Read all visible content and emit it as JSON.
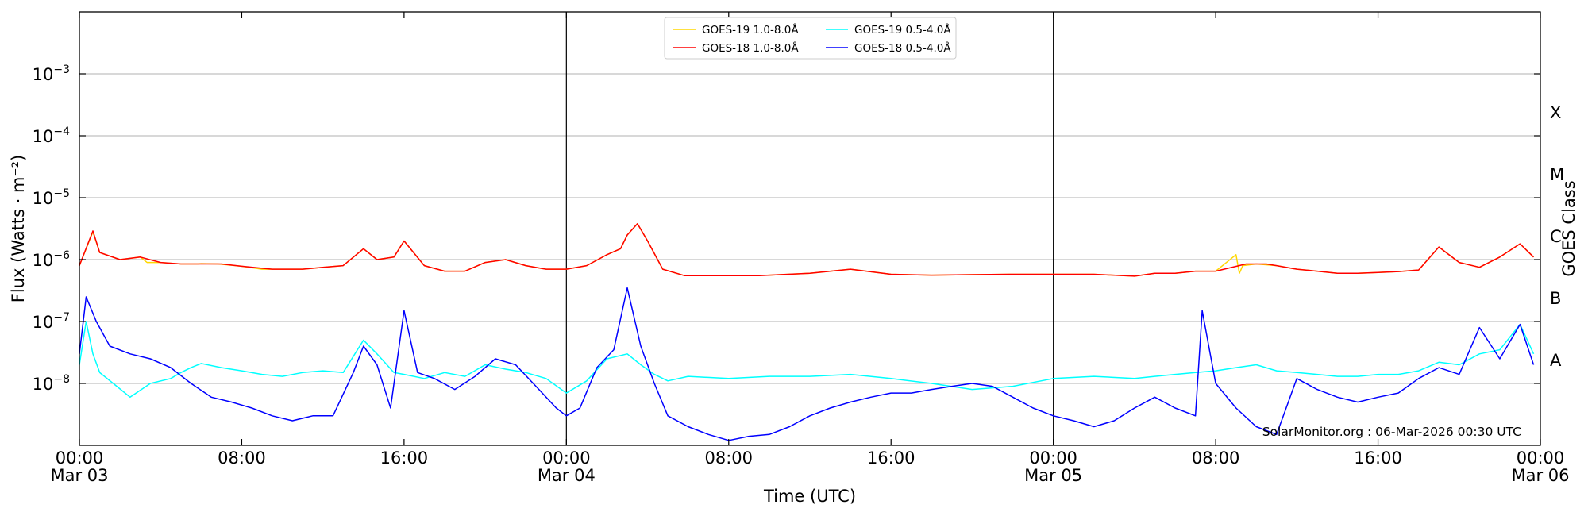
{
  "chart_data": {
    "type": "line",
    "title": "",
    "xlabel": "Time (UTC)",
    "ylabel": "Flux (Watts · m⁻²)",
    "right_ylabel": "GOES Class",
    "y_scale": "log",
    "ylim": [
      1e-09,
      0.01
    ],
    "xlim": [
      "2026-03-03T00:00",
      "2026-03-06T00:00"
    ],
    "grid": "horizontal at decades",
    "legend_position": "top-center",
    "x_ticks": [
      {
        "time": "2026-03-03T00:00",
        "label": "00:00",
        "date": "Mar 03"
      },
      {
        "time": "2026-03-03T08:00",
        "label": "08:00",
        "date": ""
      },
      {
        "time": "2026-03-03T16:00",
        "label": "16:00",
        "date": ""
      },
      {
        "time": "2026-03-04T00:00",
        "label": "00:00",
        "date": "Mar 04"
      },
      {
        "time": "2026-03-04T08:00",
        "label": "08:00",
        "date": ""
      },
      {
        "time": "2026-03-04T16:00",
        "label": "16:00",
        "date": ""
      },
      {
        "time": "2026-03-05T00:00",
        "label": "00:00",
        "date": "Mar 05"
      },
      {
        "time": "2026-03-05T08:00",
        "label": "08:00",
        "date": ""
      },
      {
        "time": "2026-03-05T16:00",
        "label": "16:00",
        "date": ""
      },
      {
        "time": "2026-03-06T00:00",
        "label": "00:00",
        "date": "Mar 06"
      }
    ],
    "day_markers": [
      "2026-03-04T00:00",
      "2026-03-05T00:00"
    ],
    "y_ticks": [
      {
        "value": 1e-08,
        "base": "10",
        "exp": "−8"
      },
      {
        "value": 1e-07,
        "base": "10",
        "exp": "−7"
      },
      {
        "value": 1e-06,
        "base": "10",
        "exp": "−6"
      },
      {
        "value": 1e-05,
        "base": "10",
        "exp": "−5"
      },
      {
        "value": 0.0001,
        "base": "10",
        "exp": "−4"
      },
      {
        "value": 0.001,
        "base": "10",
        "exp": "−3"
      }
    ],
    "goes_classes": [
      {
        "label": "A",
        "value": 1e-08
      },
      {
        "label": "B",
        "value": 1e-07
      },
      {
        "label": "C",
        "value": 1e-06
      },
      {
        "label": "M",
        "value": 1e-05
      },
      {
        "label": "X",
        "value": 0.0001
      }
    ],
    "annotation": "SolarMonitor.org : 06-Mar-2026 00:30 UTC",
    "series": [
      {
        "name": "GOES-19 1.0-8.0Å",
        "color": "#ffd700",
        "x": [
          "2026-03-03T00:00",
          "2026-03-03T00:40",
          "2026-03-03T01:00",
          "2026-03-03T02:00",
          "2026-03-03T03:00",
          "2026-03-03T03:20",
          "2026-03-03T04:00",
          "2026-03-03T05:00",
          "2026-03-03T05:50",
          "2026-03-03T06:00",
          "2026-03-03T06:50",
          "2026-03-03T08:00",
          "2026-03-03T09:00",
          "2026-03-03T10:00",
          "2026-03-03T11:00",
          "2026-03-03T12:00",
          "2026-03-03T13:00",
          "2026-03-03T14:00",
          "2026-03-03T14:40",
          "2026-03-03T15:30",
          "2026-03-03T16:00",
          "2026-03-03T17:00",
          "2026-03-03T18:00",
          "2026-03-03T19:00",
          "2026-03-03T20:00",
          "2026-03-03T21:00",
          "2026-03-03T22:00",
          "2026-03-03T23:00",
          "2026-03-04T00:00",
          "2026-03-04T01:00",
          "2026-03-04T02:00",
          "2026-03-04T02:40",
          "2026-03-04T03:00",
          "2026-03-04T03:30",
          "2026-03-04T04:00",
          "2026-03-04T04:45",
          "2026-03-04T05:50",
          "2026-03-04T07:00",
          "2026-03-04T08:00",
          "2026-03-04T09:00",
          "2026-03-04T10:00",
          "2026-03-04T12:00",
          "2026-03-04T14:00",
          "2026-03-04T16:00",
          "2026-03-04T18:00",
          "2026-03-04T20:00",
          "2026-03-04T22:00",
          "2026-03-05T00:00",
          "2026-03-05T02:00",
          "2026-03-05T04:00",
          "2026-03-05T05:00",
          "2026-03-05T06:00",
          "2026-03-05T07:00",
          "2026-03-05T08:00",
          "2026-03-05T09:00",
          "2026-03-05T09:10",
          "2026-03-05T09:20",
          "2026-03-05T10:00",
          "2026-03-05T11:00",
          "2026-03-05T12:00",
          "2026-03-05T13:00",
          "2026-03-05T14:00",
          "2026-03-05T15:00",
          "2026-03-05T16:00",
          "2026-03-05T17:00",
          "2026-03-05T18:00",
          "2026-03-05T19:00",
          "2026-03-05T20:00",
          "2026-03-05T21:00",
          "2026-03-05T22:00",
          "2026-03-05T23:00",
          "2026-03-05T23:40"
        ],
        "y": [
          8e-07,
          2.8e-06,
          1.3e-06,
          1e-06,
          1.1e-06,
          9e-07,
          9e-07,
          8.5e-07,
          8.5e-07,
          8.6e-07,
          8.5e-07,
          7.8e-07,
          7e-07,
          7e-07,
          7e-07,
          7.5e-07,
          8e-07,
          1.5e-06,
          1e-06,
          1.1e-06,
          2e-06,
          8e-07,
          6.5e-07,
          6.5e-07,
          9e-07,
          1e-06,
          8e-07,
          7e-07,
          7e-07,
          8e-07,
          1.2e-06,
          1.5e-06,
          2.5e-06,
          3.8e-06,
          2e-06,
          7e-07,
          5.5e-07,
          5.5e-07,
          5.5e-07,
          5.5e-07,
          5.6e-07,
          6e-07,
          7e-07,
          5.8e-07,
          5.6e-07,
          5.7e-07,
          5.8e-07,
          5.8e-07,
          5.8e-07,
          5.4e-07,
          6e-07,
          6e-07,
          6.5e-07,
          6.5e-07,
          1.2e-06,
          6e-07,
          8e-07,
          8.5e-07,
          8e-07,
          7e-07,
          6.5e-07,
          6e-07,
          6e-07,
          6.2e-07,
          6.4e-07,
          6.8e-07,
          1.6e-06,
          9e-07,
          7.5e-07,
          1.1e-06,
          1.8e-06,
          1.1e-06
        ]
      },
      {
        "name": "GOES-18 1.0-8.0Å",
        "color": "#ff0000",
        "x": [
          "2026-03-03T00:00",
          "2026-03-03T00:40",
          "2026-03-03T01:00",
          "2026-03-03T02:00",
          "2026-03-03T03:00",
          "2026-03-03T04:00",
          "2026-03-03T05:00",
          "2026-03-03T06:00",
          "2026-03-03T07:00",
          "2026-03-03T08:00",
          "2026-03-03T09:30",
          "2026-03-03T10:00",
          "2026-03-03T11:00",
          "2026-03-03T12:00",
          "2026-03-03T13:00",
          "2026-03-03T14:00",
          "2026-03-03T14:40",
          "2026-03-03T15:30",
          "2026-03-03T16:00",
          "2026-03-03T17:00",
          "2026-03-03T18:00",
          "2026-03-03T19:00",
          "2026-03-03T20:00",
          "2026-03-03T21:00",
          "2026-03-03T22:00",
          "2026-03-03T23:00",
          "2026-03-04T00:00",
          "2026-03-04T01:00",
          "2026-03-04T02:00",
          "2026-03-04T02:40",
          "2026-03-04T03:00",
          "2026-03-04T03:30",
          "2026-03-04T04:00",
          "2026-03-04T04:45",
          "2026-03-04T05:50",
          "2026-03-04T07:00",
          "2026-03-04T08:00",
          "2026-03-04T09:30",
          "2026-03-04T10:00",
          "2026-03-04T12:00",
          "2026-03-04T14:00",
          "2026-03-04T16:00",
          "2026-03-04T18:00",
          "2026-03-04T20:00",
          "2026-03-04T22:00",
          "2026-03-05T00:00",
          "2026-03-05T02:00",
          "2026-03-05T04:00",
          "2026-03-05T05:00",
          "2026-03-05T06:00",
          "2026-03-05T07:00",
          "2026-03-05T08:00",
          "2026-03-05T09:30",
          "2026-03-05T10:30",
          "2026-03-05T11:00",
          "2026-03-05T12:00",
          "2026-03-05T13:00",
          "2026-03-05T14:00",
          "2026-03-05T15:00",
          "2026-03-05T16:00",
          "2026-03-05T17:00",
          "2026-03-05T18:00",
          "2026-03-05T19:00",
          "2026-03-05T20:00",
          "2026-03-05T21:00",
          "2026-03-05T22:00",
          "2026-03-05T23:00",
          "2026-03-05T23:40"
        ],
        "y": [
          8e-07,
          2.9e-06,
          1.3e-06,
          1e-06,
          1.1e-06,
          9e-07,
          8.5e-07,
          8.5e-07,
          8.5e-07,
          7.8e-07,
          7e-07,
          7e-07,
          7e-07,
          7.5e-07,
          8e-07,
          1.5e-06,
          1e-06,
          1.1e-06,
          2e-06,
          8e-07,
          6.5e-07,
          6.5e-07,
          9e-07,
          1e-06,
          8e-07,
          7e-07,
          7e-07,
          8e-07,
          1.2e-06,
          1.5e-06,
          2.5e-06,
          3.8e-06,
          2e-06,
          7e-07,
          5.5e-07,
          5.5e-07,
          5.5e-07,
          5.5e-07,
          5.6e-07,
          6e-07,
          7e-07,
          5.8e-07,
          5.6e-07,
          5.7e-07,
          5.8e-07,
          5.8e-07,
          5.8e-07,
          5.4e-07,
          6e-07,
          6e-07,
          6.5e-07,
          6.5e-07,
          8.5e-07,
          8.5e-07,
          8e-07,
          7e-07,
          6.5e-07,
          6e-07,
          6e-07,
          6.2e-07,
          6.4e-07,
          6.8e-07,
          1.6e-06,
          9e-07,
          7.5e-07,
          1.1e-06,
          1.8e-06,
          1.1e-06
        ]
      },
      {
        "name": "GOES-19 0.5-4.0Å",
        "color": "#00ffff",
        "x": [
          "2026-03-03T00:00",
          "2026-03-03T00:20",
          "2026-03-03T00:40",
          "2026-03-03T01:00",
          "2026-03-03T01:40",
          "2026-03-03T02:30",
          "2026-03-03T03:30",
          "2026-03-03T04:30",
          "2026-03-03T05:00",
          "2026-03-03T05:30",
          "2026-03-03T06:00",
          "2026-03-03T07:00",
          "2026-03-03T08:00",
          "2026-03-03T09:00",
          "2026-03-03T10:00",
          "2026-03-03T11:00",
          "2026-03-03T12:00",
          "2026-03-03T13:00",
          "2026-03-03T14:00",
          "2026-03-03T14:40",
          "2026-03-03T15:30",
          "2026-03-03T16:00",
          "2026-03-03T17:00",
          "2026-03-03T18:00",
          "2026-03-03T19:00",
          "2026-03-03T20:00",
          "2026-03-03T21:00",
          "2026-03-03T22:00",
          "2026-03-03T23:00",
          "2026-03-04T00:00",
          "2026-03-04T01:00",
          "2026-03-04T02:00",
          "2026-03-04T03:00",
          "2026-03-04T03:40",
          "2026-03-04T04:20",
          "2026-03-04T05:00",
          "2026-03-04T06:00",
          "2026-03-04T08:00",
          "2026-03-04T10:00",
          "2026-03-04T12:00",
          "2026-03-04T14:00",
          "2026-03-04T16:00",
          "2026-03-04T18:00",
          "2026-03-04T20:00",
          "2026-03-04T22:00",
          "2026-03-05T00:00",
          "2026-03-05T02:00",
          "2026-03-05T04:00",
          "2026-03-05T05:00",
          "2026-03-05T06:00",
          "2026-03-05T07:00",
          "2026-03-05T08:00",
          "2026-03-05T09:00",
          "2026-03-05T10:00",
          "2026-03-05T11:00",
          "2026-03-05T12:00",
          "2026-03-05T13:00",
          "2026-03-05T14:00",
          "2026-03-05T15:00",
          "2026-03-05T16:00",
          "2026-03-05T17:00",
          "2026-03-05T18:00",
          "2026-03-05T19:00",
          "2026-03-05T20:00",
          "2026-03-05T21:00",
          "2026-03-05T22:00",
          "2026-03-05T23:00",
          "2026-03-05T23:40"
        ],
        "y": [
          2e-08,
          1e-07,
          3e-08,
          1.5e-08,
          1e-08,
          6e-09,
          1e-08,
          1.2e-08,
          1.5e-08,
          1.8e-08,
          2.1e-08,
          1.8e-08,
          1.6e-08,
          1.4e-08,
          1.3e-08,
          1.5e-08,
          1.6e-08,
          1.5e-08,
          5e-08,
          3e-08,
          1.5e-08,
          1.4e-08,
          1.2e-08,
          1.5e-08,
          1.3e-08,
          2e-08,
          1.7e-08,
          1.5e-08,
          1.2e-08,
          7e-09,
          1.1e-08,
          2.5e-08,
          3e-08,
          2e-08,
          1.4e-08,
          1.1e-08,
          1.3e-08,
          1.2e-08,
          1.3e-08,
          1.3e-08,
          1.4e-08,
          1.2e-08,
          1e-08,
          8e-09,
          9e-09,
          1.2e-08,
          1.3e-08,
          1.2e-08,
          1.3e-08,
          1.4e-08,
          1.5e-08,
          1.6e-08,
          1.8e-08,
          2e-08,
          1.6e-08,
          1.5e-08,
          1.4e-08,
          1.3e-08,
          1.3e-08,
          1.4e-08,
          1.4e-08,
          1.6e-08,
          2.2e-08,
          2e-08,
          3e-08,
          3.5e-08,
          9e-08,
          3e-08
        ]
      },
      {
        "name": "GOES-18 0.5-4.0Å",
        "color": "#0000ff",
        "x": [
          "2026-03-03T00:00",
          "2026-03-03T00:20",
          "2026-03-03T00:50",
          "2026-03-03T01:30",
          "2026-03-03T02:30",
          "2026-03-03T03:30",
          "2026-03-03T04:30",
          "2026-03-03T05:30",
          "2026-03-03T06:30",
          "2026-03-03T07:30",
          "2026-03-03T08:30",
          "2026-03-03T09:30",
          "2026-03-03T10:30",
          "2026-03-03T11:30",
          "2026-03-03T12:30",
          "2026-03-03T13:30",
          "2026-03-03T14:00",
          "2026-03-03T14:40",
          "2026-03-03T15:20",
          "2026-03-03T16:00",
          "2026-03-03T16:40",
          "2026-03-03T17:30",
          "2026-03-03T18:30",
          "2026-03-03T19:30",
          "2026-03-03T20:30",
          "2026-03-03T21:30",
          "2026-03-03T22:30",
          "2026-03-03T23:30",
          "2026-03-04T00:00",
          "2026-03-04T00:40",
          "2026-03-04T01:30",
          "2026-03-04T02:20",
          "2026-03-04T03:00",
          "2026-03-04T03:40",
          "2026-03-04T04:20",
          "2026-03-04T05:00",
          "2026-03-04T06:00",
          "2026-03-04T07:00",
          "2026-03-04T08:00",
          "2026-03-04T09:00",
          "2026-03-04T10:00",
          "2026-03-04T11:00",
          "2026-03-04T12:00",
          "2026-03-04T13:00",
          "2026-03-04T14:00",
          "2026-03-04T15:00",
          "2026-03-04T16:00",
          "2026-03-04T17:00",
          "2026-03-04T18:00",
          "2026-03-04T19:00",
          "2026-03-04T20:00",
          "2026-03-04T21:00",
          "2026-03-04T22:00",
          "2026-03-04T23:00",
          "2026-03-05T00:00",
          "2026-03-05T01:00",
          "2026-03-05T02:00",
          "2026-03-05T03:00",
          "2026-03-05T04:00",
          "2026-03-05T05:00",
          "2026-03-05T06:00",
          "2026-03-05T07:00",
          "2026-03-05T07:20",
          "2026-03-05T08:00",
          "2026-03-05T09:00",
          "2026-03-05T10:00",
          "2026-03-05T11:00",
          "2026-03-05T12:00",
          "2026-03-05T13:00",
          "2026-03-05T14:00",
          "2026-03-05T15:00",
          "2026-03-05T16:00",
          "2026-03-05T17:00",
          "2026-03-05T18:00",
          "2026-03-05T19:00",
          "2026-03-05T20:00",
          "2026-03-05T21:00",
          "2026-03-05T22:00",
          "2026-03-05T23:00",
          "2026-03-05T23:40"
        ],
        "y": [
          3e-08,
          2.5e-07,
          1e-07,
          4e-08,
          3e-08,
          2.5e-08,
          1.8e-08,
          1e-08,
          6e-09,
          5e-09,
          4e-09,
          3e-09,
          2.5e-09,
          3e-09,
          3e-09,
          1.5e-08,
          4e-08,
          2e-08,
          4e-09,
          1.5e-07,
          1.5e-08,
          1.2e-08,
          8e-09,
          1.3e-08,
          2.5e-08,
          2e-08,
          9e-09,
          4e-09,
          3e-09,
          4e-09,
          1.8e-08,
          3.5e-08,
          3.5e-07,
          4e-08,
          1e-08,
          3e-09,
          2e-09,
          1.5e-09,
          1.2e-09,
          1.4e-09,
          1.5e-09,
          2e-09,
          3e-09,
          4e-09,
          5e-09,
          6e-09,
          7e-09,
          7e-09,
          8e-09,
          9e-09,
          1e-08,
          9e-09,
          6e-09,
          4e-09,
          3e-09,
          2.5e-09,
          2e-09,
          2.5e-09,
          4e-09,
          6e-09,
          4e-09,
          3e-09,
          1.5e-07,
          1e-08,
          4e-09,
          2e-09,
          1.5e-09,
          1.2e-08,
          8e-09,
          6e-09,
          5e-09,
          6e-09,
          7e-09,
          1.2e-08,
          1.8e-08,
          1.4e-08,
          8e-08,
          2.5e-08,
          9e-08,
          2e-08
        ]
      }
    ]
  }
}
